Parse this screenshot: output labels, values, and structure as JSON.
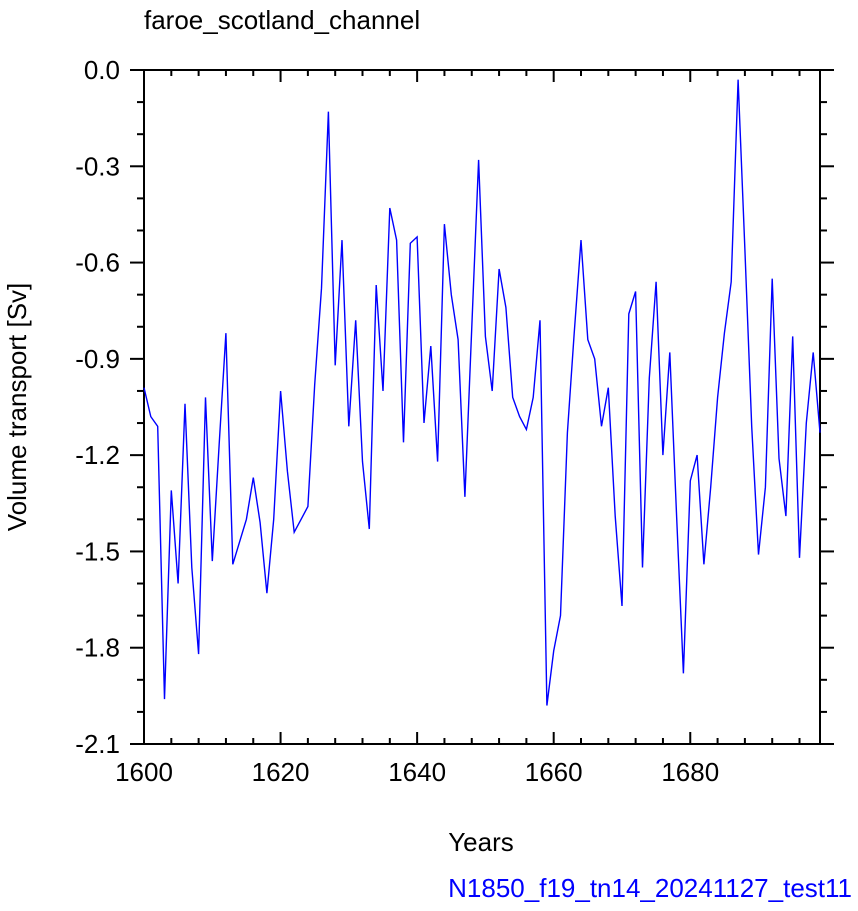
{
  "chart_data": {
    "type": "line",
    "title": "faroe_scotland_channel",
    "xlabel": "Years",
    "ylabel": "Volume transport [Sv]",
    "caption": "N1850_f19_tn14_20241127_test11",
    "xlim": [
      1600,
      1699
    ],
    "ylim": [
      -2.1,
      0.0
    ],
    "xticks": [
      1600,
      1620,
      1640,
      1660,
      1680
    ],
    "xtick_labels": [
      "1600",
      "1620",
      "1640",
      "1660",
      "1680"
    ],
    "yticks": [
      0.0,
      -0.3,
      -0.6,
      -0.9,
      -1.2,
      -1.5,
      -1.8,
      -2.1
    ],
    "ytick_labels": [
      "0.0",
      "-0.3",
      "-0.6",
      "-0.9",
      "-1.2",
      "-1.5",
      "-1.8",
      "-2.1"
    ],
    "grid": false,
    "line_color": "#0000ff",
    "caption_color": "#0000ff",
    "series": [
      {
        "x": [
          1600,
          1601,
          1602,
          1603,
          1604,
          1605,
          1606,
          1607,
          1608,
          1609,
          1610,
          1611,
          1612,
          1613,
          1614,
          1615,
          1616,
          1617,
          1618,
          1619,
          1620,
          1621,
          1622,
          1623,
          1624,
          1625,
          1626,
          1627,
          1628,
          1629,
          1630,
          1631,
          1632,
          1633,
          1634,
          1635,
          1636,
          1637,
          1638,
          1639,
          1640,
          1641,
          1642,
          1643,
          1644,
          1645,
          1646,
          1647,
          1648,
          1649,
          1650,
          1651,
          1652,
          1653,
          1654,
          1655,
          1656,
          1657,
          1658,
          1659,
          1660,
          1661,
          1662,
          1663,
          1664,
          1665,
          1666,
          1667,
          1668,
          1669,
          1670,
          1671,
          1672,
          1673,
          1674,
          1675,
          1676,
          1677,
          1678,
          1679,
          1680,
          1681,
          1682,
          1683,
          1684,
          1685,
          1686,
          1687,
          1688,
          1689,
          1690,
          1691,
          1692,
          1693,
          1694,
          1695,
          1696,
          1697,
          1698,
          1699
        ],
        "values": [
          -0.99,
          -1.08,
          -1.11,
          -1.96,
          -1.31,
          -1.6,
          -1.04,
          -1.55,
          -1.82,
          -1.02,
          -1.53,
          -1.17,
          -0.82,
          -1.54,
          -1.47,
          -1.4,
          -1.27,
          -1.41,
          -1.63,
          -1.4,
          -1.0,
          -1.25,
          -1.44,
          -1.4,
          -1.36,
          -0.98,
          -0.68,
          -0.13,
          -0.92,
          -0.53,
          -1.11,
          -0.78,
          -1.22,
          -1.43,
          -0.67,
          -1.0,
          -0.43,
          -0.53,
          -1.16,
          -0.54,
          -0.52,
          -1.1,
          -0.86,
          -1.22,
          -0.48,
          -0.7,
          -0.84,
          -1.33,
          -0.8,
          -0.28,
          -0.83,
          -1.0,
          -0.62,
          -0.74,
          -1.02,
          -1.08,
          -1.12,
          -1.02,
          -0.78,
          -1.98,
          -1.81,
          -1.7,
          -1.13,
          -0.82,
          -0.53,
          -0.84,
          -0.9,
          -1.11,
          -0.99,
          -1.39,
          -1.67,
          -0.76,
          -0.69,
          -1.55,
          -0.96,
          -0.66,
          -1.2,
          -0.88,
          -1.39,
          -1.88,
          -1.28,
          -1.2,
          -1.54,
          -1.3,
          -1.02,
          -0.82,
          -0.66,
          -0.03,
          -0.56,
          -1.11,
          -1.51,
          -1.3,
          -0.65,
          -1.21,
          -1.39,
          -0.83,
          -1.52,
          -1.1,
          -0.88,
          -1.13
        ]
      }
    ]
  }
}
